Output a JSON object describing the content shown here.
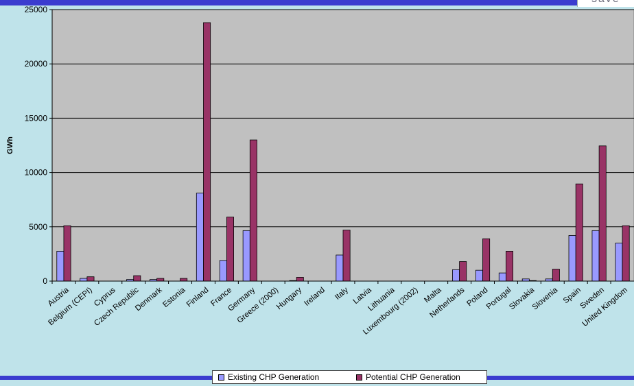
{
  "colors": {
    "existing": "#9999ff",
    "potential": "#993366",
    "plot_bg": "#c0c0c0",
    "page_bg": "#bfe3ea",
    "bar_accent": "#3b3ccf"
  },
  "header": {
    "corner_text": "save"
  },
  "chart_data": {
    "type": "bar",
    "title": "",
    "xlabel": "",
    "ylabel": "GWh",
    "ylim": [
      0,
      25000
    ],
    "yticks": [
      "0",
      "5000",
      "10000",
      "15000",
      "20000",
      "25000"
    ],
    "grid": true,
    "legend_position": "bottom",
    "categories": [
      "Austria",
      "Belgium (CEPI)",
      "Cyprus",
      "Czech Republic",
      "Denmark",
      "Estonia",
      "Finland",
      "France",
      "Germany",
      "Greece (2000)",
      "Hungary",
      "Ireland",
      "Italy",
      "Latvia",
      "Lithuania",
      "Luxembourg (2002)",
      "Malta",
      "Netherlands",
      "Poland",
      "Portugal",
      "Slovakia",
      "Slovenia",
      "Spain",
      "Sweden",
      "United Kingdom"
    ],
    "series": [
      {
        "name": "Existing CHP Generation",
        "values": [
          2750,
          250,
          0,
          150,
          150,
          0,
          8100,
          1900,
          4650,
          0,
          50,
          0,
          2400,
          0,
          0,
          0,
          0,
          1050,
          1000,
          750,
          200,
          200,
          4200,
          4650,
          3500
        ]
      },
      {
        "name": "Potential CHP Generation",
        "values": [
          5100,
          400,
          0,
          500,
          250,
          250,
          23800,
          5900,
          13000,
          0,
          350,
          0,
          4700,
          0,
          0,
          0,
          0,
          1800,
          3900,
          2750,
          50,
          1100,
          8950,
          12450,
          5100
        ]
      }
    ]
  }
}
